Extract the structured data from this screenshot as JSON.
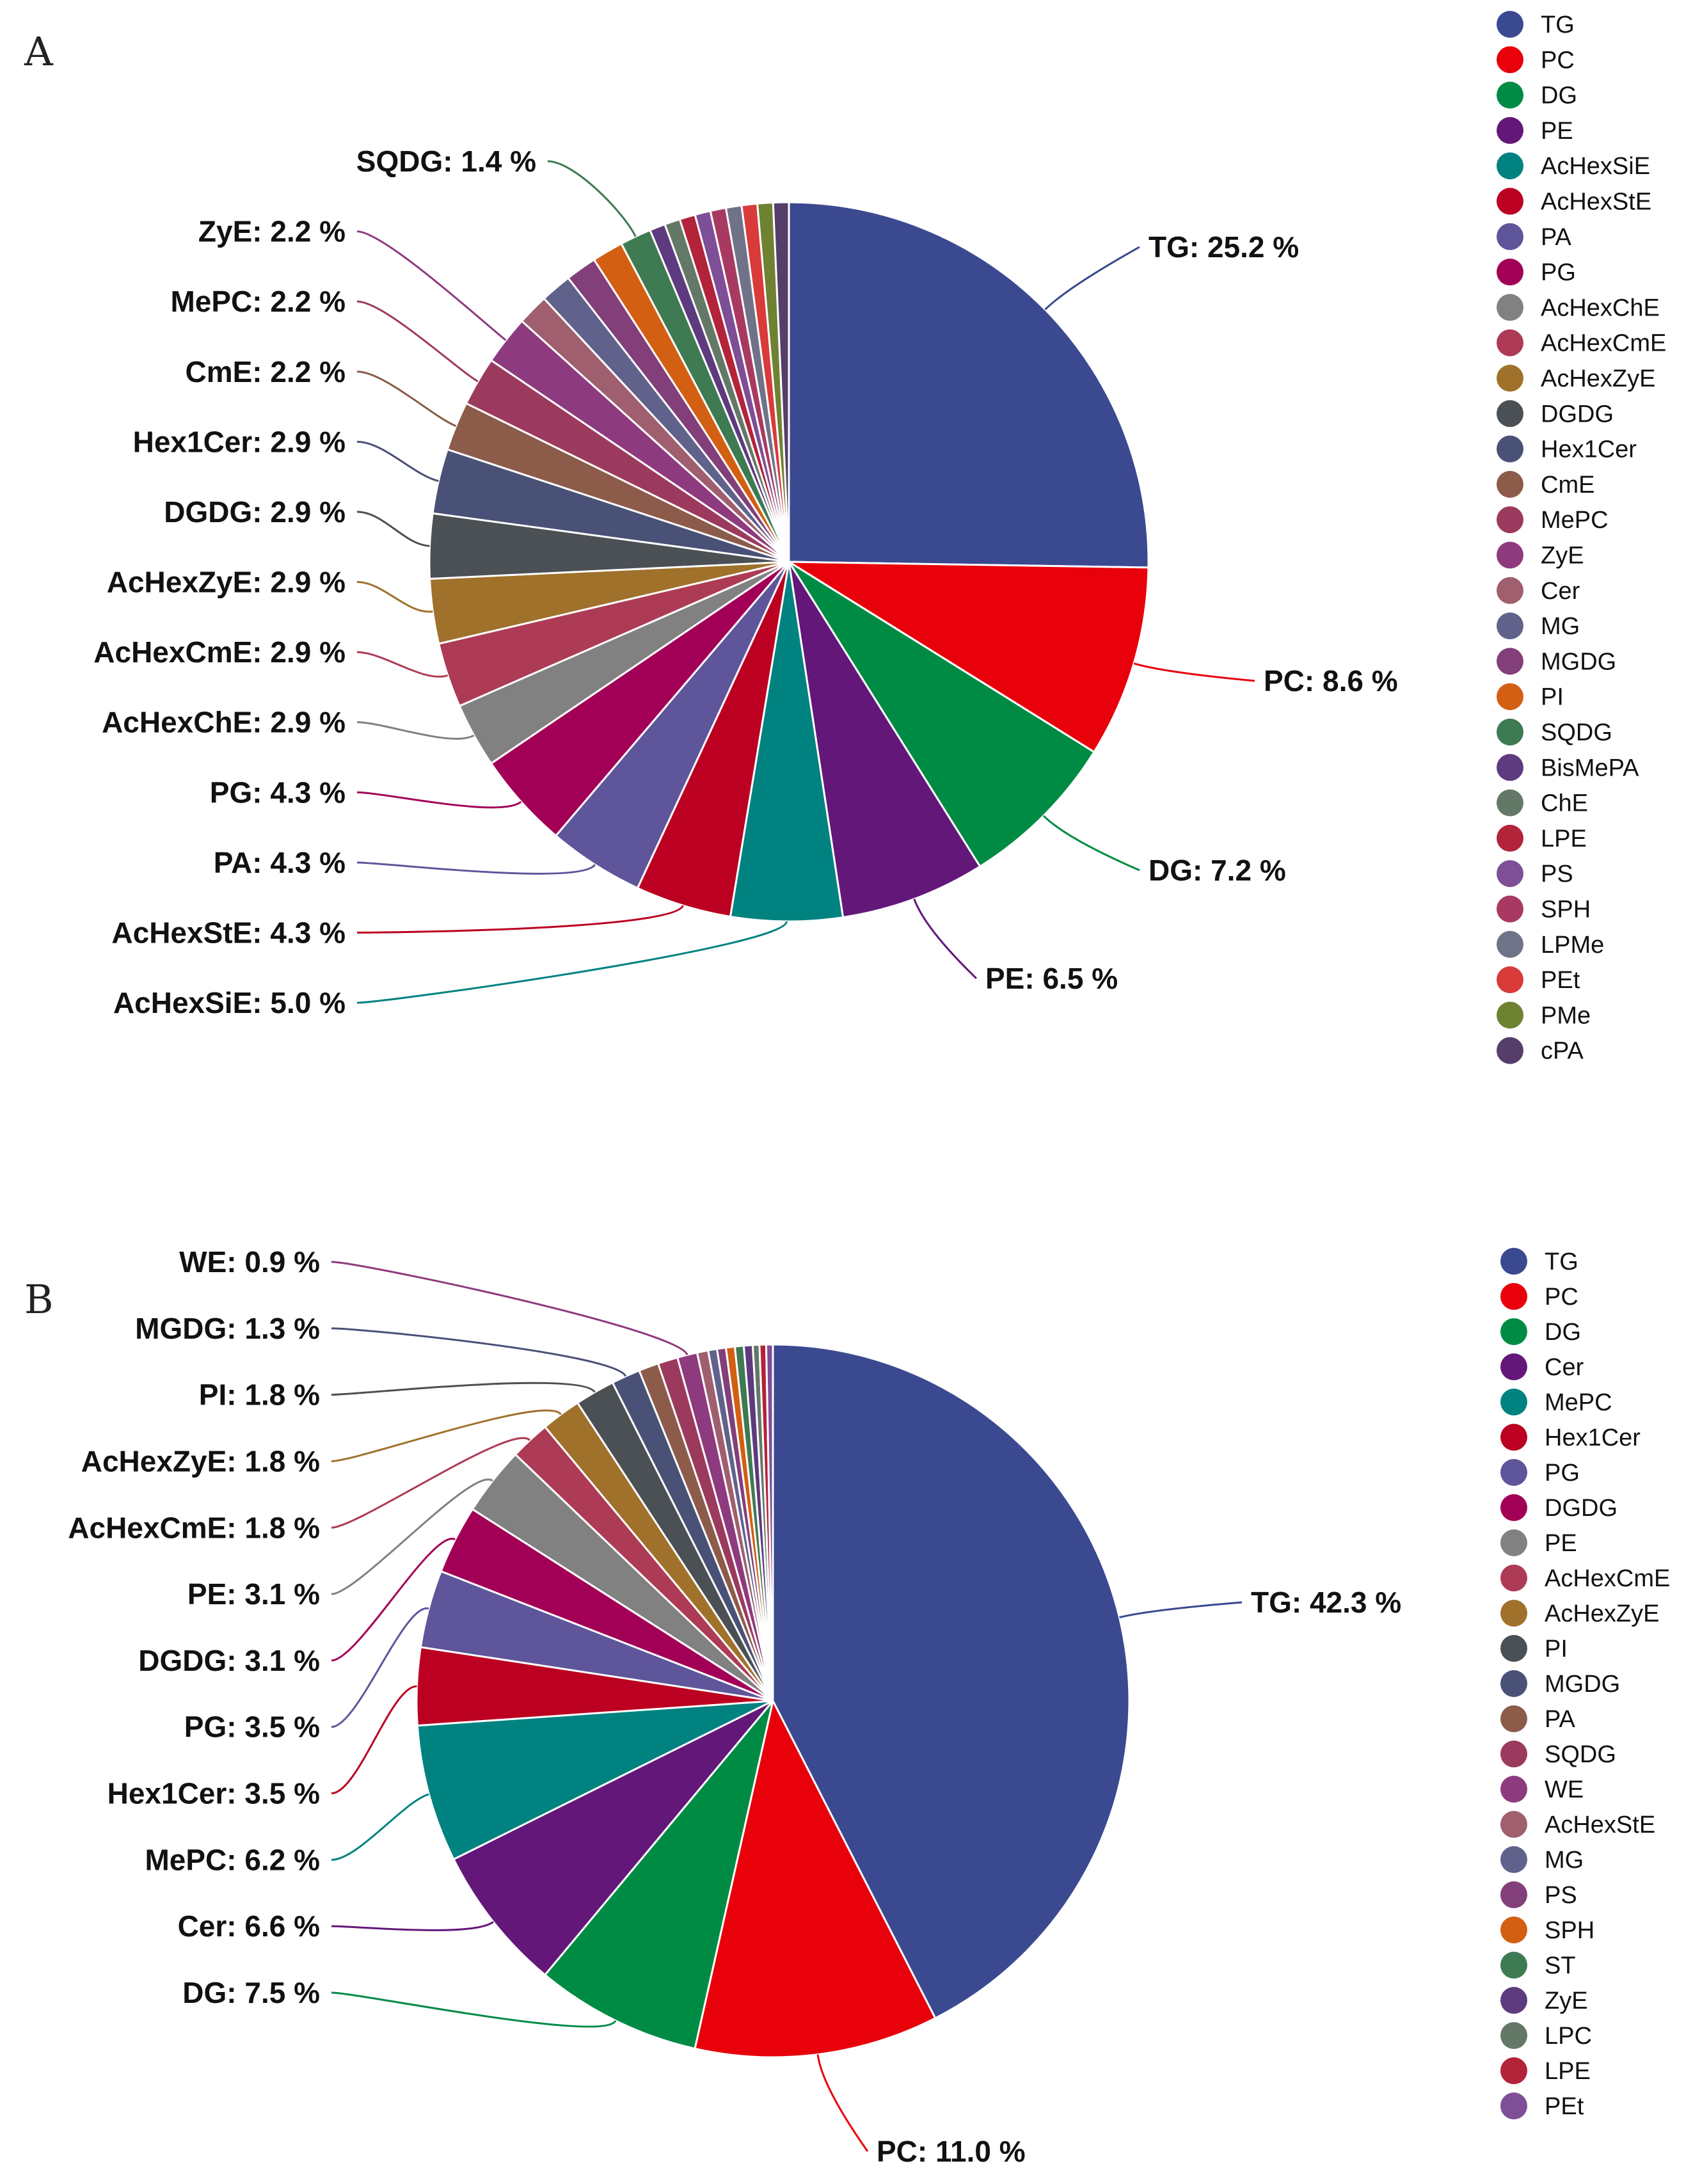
{
  "chart_data": [
    {
      "type": "pie",
      "panel": "A",
      "slices": [
        {
          "name": "TG",
          "value": 25.2,
          "color": "#3B4990",
          "label": "TG: 25.2 %"
        },
        {
          "name": "PC",
          "value": 8.6,
          "color": "#E8000B",
          "label": "PC: 8.6 %"
        },
        {
          "name": "DG",
          "value": 7.2,
          "color": "#008B45",
          "label": "DG: 7.2 %"
        },
        {
          "name": "PE",
          "value": 6.5,
          "color": "#631879",
          "label": "PE: 6.5 %"
        },
        {
          "name": "AcHexSiE",
          "value": 5.0,
          "color": "#008280",
          "label": "AcHexSiE: 5.0 %"
        },
        {
          "name": "AcHexStE",
          "value": 4.3,
          "color": "#BB0021",
          "label": "AcHexStE: 4.3 %"
        },
        {
          "name": "PA",
          "value": 4.3,
          "color": "#5F559B",
          "label": "PA: 4.3 %"
        },
        {
          "name": "PG",
          "value": 4.3,
          "color": "#A20056",
          "label": "PG: 4.3 %"
        },
        {
          "name": "AcHexChE",
          "value": 2.9,
          "color": "#808180",
          "label": "AcHexChE: 2.9 %"
        },
        {
          "name": "AcHexCmE",
          "value": 2.9,
          "color": "#AD3B55",
          "label": "AcHexCmE: 2.9 %"
        },
        {
          "name": "AcHexZyE",
          "value": 2.9,
          "color": "#A0712B",
          "label": "AcHexZyE: 2.9 %"
        },
        {
          "name": "DGDG",
          "value": 2.9,
          "color": "#4B5055",
          "label": "DGDG: 2.9 %"
        },
        {
          "name": "Hex1Cer",
          "value": 2.9,
          "color": "#4A5177",
          "label": "Hex1Cer: 2.9 %"
        },
        {
          "name": "CmE",
          "value": 2.2,
          "color": "#8C5B4A",
          "label": "CmE: 2.2 %"
        },
        {
          "name": "MePC",
          "value": 2.2,
          "color": "#9C3A5E",
          "label": "MePC: 2.2 %"
        },
        {
          "name": "ZyE",
          "value": 2.2,
          "color": "#8E3A7E",
          "label": "ZyE: 2.2 %"
        },
        {
          "name": "Cer",
          "value": 1.4,
          "color": "#A05F6E",
          "label": ""
        },
        {
          "name": "MG",
          "value": 1.4,
          "color": "#60628C",
          "label": ""
        },
        {
          "name": "MGDG",
          "value": 1.4,
          "color": "#823F7A",
          "label": ""
        },
        {
          "name": "PI",
          "value": 1.4,
          "color": "#D35F13",
          "label": ""
        },
        {
          "name": "SQDG",
          "value": 1.4,
          "color": "#3E7A52",
          "label": "SQDG: 1.4 %"
        },
        {
          "name": "BisMePA",
          "value": 0.7,
          "color": "#5E3A7E",
          "label": ""
        },
        {
          "name": "ChE",
          "value": 0.7,
          "color": "#647867",
          "label": ""
        },
        {
          "name": "LPE",
          "value": 0.7,
          "color": "#B3233A",
          "label": ""
        },
        {
          "name": "PS",
          "value": 0.7,
          "color": "#7E4E96",
          "label": ""
        },
        {
          "name": "SPH",
          "value": 0.7,
          "color": "#A83A62",
          "label": ""
        },
        {
          "name": "LPMe",
          "value": 0.7,
          "color": "#707287",
          "label": ""
        },
        {
          "name": "PEt",
          "value": 0.7,
          "color": "#D93A3A",
          "label": ""
        },
        {
          "name": "PMe",
          "value": 0.7,
          "color": "#6E8232",
          "label": ""
        },
        {
          "name": "cPA",
          "value": 0.7,
          "color": "#563E6A",
          "label": ""
        }
      ]
    },
    {
      "type": "pie",
      "panel": "B",
      "slices": [
        {
          "name": "TG",
          "value": 42.3,
          "color": "#3B4990",
          "label": "TG: 42.3 %"
        },
        {
          "name": "PC",
          "value": 11.0,
          "color": "#E8000B",
          "label": "PC: 11.0 %"
        },
        {
          "name": "DG",
          "value": 7.5,
          "color": "#008B45",
          "label": "DG: 7.5 %"
        },
        {
          "name": "Cer",
          "value": 6.6,
          "color": "#631879",
          "label": "Cer: 6.6 %"
        },
        {
          "name": "MePC",
          "value": 6.2,
          "color": "#008280",
          "label": "MePC: 6.2 %"
        },
        {
          "name": "Hex1Cer",
          "value": 3.5,
          "color": "#BB0021",
          "label": "Hex1Cer: 3.5 %"
        },
        {
          "name": "PG",
          "value": 3.5,
          "color": "#5F559B",
          "label": "PG: 3.5 %"
        },
        {
          "name": "DGDG",
          "value": 3.1,
          "color": "#A20056",
          "label": "DGDG: 3.1 %"
        },
        {
          "name": "PE",
          "value": 3.1,
          "color": "#808180",
          "label": "PE: 3.1 %"
        },
        {
          "name": "AcHexCmE",
          "value": 1.8,
          "color": "#AD3B55",
          "label": "AcHexCmE: 1.8 %"
        },
        {
          "name": "AcHexZyE",
          "value": 1.8,
          "color": "#A0712B",
          "label": "AcHexZyE: 1.8 %"
        },
        {
          "name": "PI",
          "value": 1.8,
          "color": "#4B5055",
          "label": "PI: 1.8 %"
        },
        {
          "name": "MGDG",
          "value": 1.3,
          "color": "#4A5177",
          "label": "MGDG: 1.3 %"
        },
        {
          "name": "PA",
          "value": 0.9,
          "color": "#8C5B4A",
          "label": ""
        },
        {
          "name": "SQDG",
          "value": 0.9,
          "color": "#9C3A5E",
          "label": ""
        },
        {
          "name": "WE",
          "value": 0.9,
          "color": "#8E3A7E",
          "label": "WE: 0.9 %"
        },
        {
          "name": "AcHexStE",
          "value": 0.5,
          "color": "#A05F6E",
          "label": ""
        },
        {
          "name": "MG",
          "value": 0.4,
          "color": "#60628C",
          "label": ""
        },
        {
          "name": "PS",
          "value": 0.4,
          "color": "#823F7A",
          "label": ""
        },
        {
          "name": "SPH",
          "value": 0.4,
          "color": "#D35F13",
          "label": ""
        },
        {
          "name": "ST",
          "value": 0.4,
          "color": "#3E7A52",
          "label": ""
        },
        {
          "name": "ZyE",
          "value": 0.4,
          "color": "#5E3A7E",
          "label": ""
        },
        {
          "name": "LPC",
          "value": 0.3,
          "color": "#647867",
          "label": ""
        },
        {
          "name": "LPE",
          "value": 0.3,
          "color": "#B3233A",
          "label": ""
        },
        {
          "name": "PEt",
          "value": 0.3,
          "color": "#7E4E96",
          "label": ""
        }
      ]
    }
  ]
}
